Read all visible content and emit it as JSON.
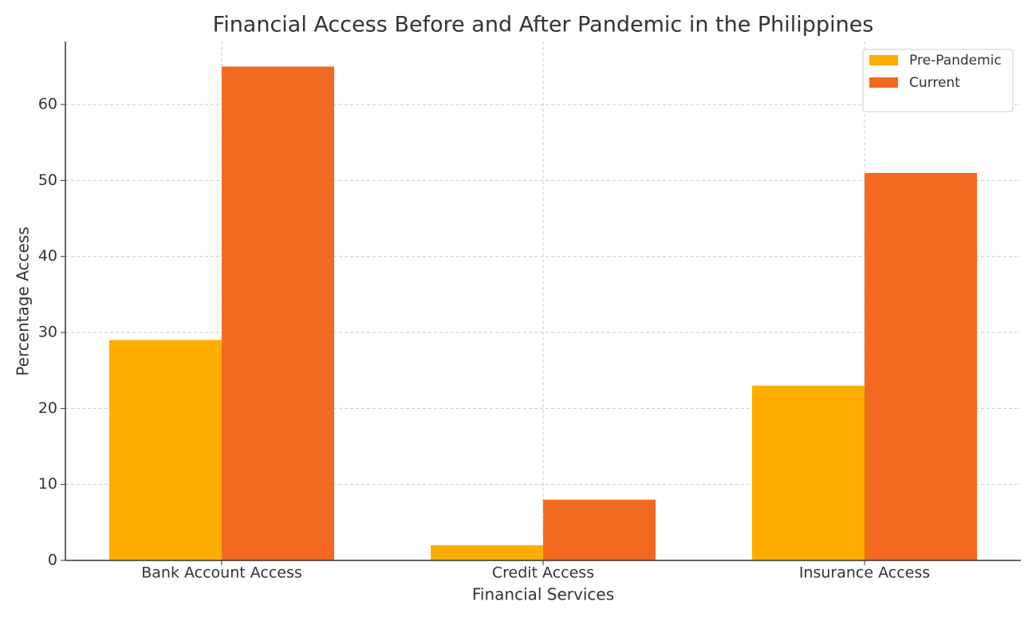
{
  "chart_data": {
    "type": "bar",
    "title": "Financial Access Before and After Pandemic in the Philippines",
    "x_label": "Financial Services",
    "y_label": "Percentage Access",
    "categories": [
      "Bank Account Access",
      "Credit Access",
      "Insurance Access"
    ],
    "series": [
      {
        "name": "Pre-Pandemic",
        "color": "#ffae00",
        "values": [
          29,
          2,
          23
        ]
      },
      {
        "name": "Current",
        "color": "#f26a21",
        "values": [
          65,
          8,
          51
        ]
      }
    ],
    "ylim": [
      0,
      68.3
    ],
    "yticks": [
      0,
      10,
      20,
      30,
      40,
      50,
      60
    ],
    "grid": true,
    "legend": "upper-right"
  }
}
